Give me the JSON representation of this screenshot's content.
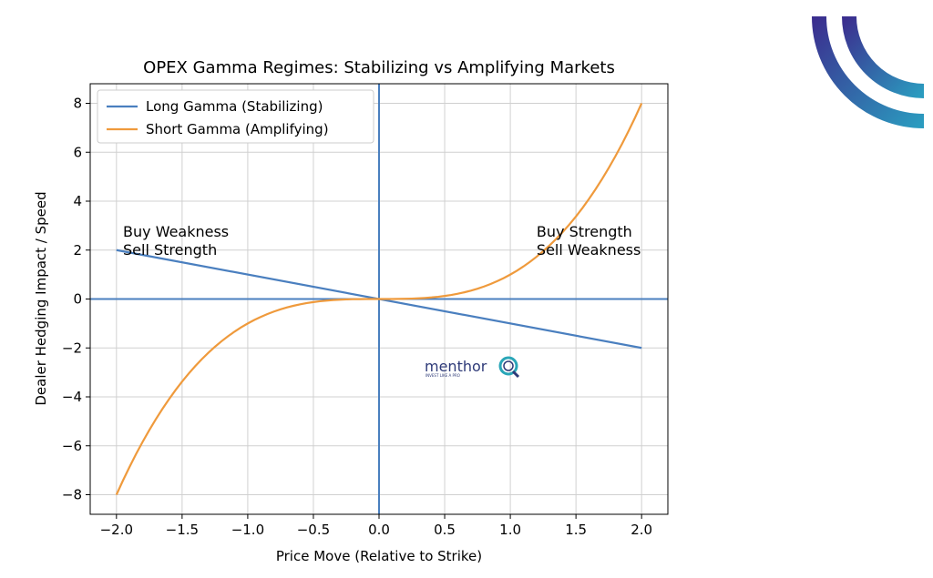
{
  "chart_data": {
    "type": "line",
    "title": "OPEX Gamma Regimes: Stabilizing vs Amplifying Markets",
    "xlabel": "Price Move (Relative to Strike)",
    "ylabel": "Dealer Hedging Impact / Speed",
    "xlim": [
      -2.2,
      2.2
    ],
    "ylim": [
      -8.8,
      8.8
    ],
    "xticks": [
      -2.0,
      -1.5,
      -1.0,
      -0.5,
      0.0,
      0.5,
      1.0,
      1.5,
      2.0
    ],
    "xtick_labels": [
      "−2.0",
      "−1.5",
      "−1.0",
      "−0.5",
      "0.0",
      "0.5",
      "1.0",
      "1.5",
      "2.0"
    ],
    "yticks": [
      -8,
      -6,
      -4,
      -2,
      0,
      2,
      4,
      6,
      8
    ],
    "ytick_labels": [
      "−8",
      "−6",
      "−4",
      "−2",
      "0",
      "2",
      "4",
      "6",
      "8"
    ],
    "grid": true,
    "legend_position": "upper-left",
    "series": [
      {
        "name": "Long Gamma (Stabilizing)",
        "color": "#4a7fbf",
        "x": [
          -2.0,
          2.0
        ],
        "y": [
          2.0,
          -2.0
        ]
      },
      {
        "name": "Short Gamma (Amplifying)",
        "color": "#ef9a3c",
        "x": [
          -2.0,
          -1.75,
          -1.5,
          -1.25,
          -1.0,
          -0.75,
          -0.5,
          -0.25,
          0.0,
          0.25,
          0.5,
          0.75,
          1.0,
          1.25,
          1.5,
          1.75,
          2.0
        ],
        "y": [
          -8.0,
          -5.36,
          -3.375,
          -1.953,
          -1.0,
          -0.422,
          -0.125,
          -0.016,
          0.0,
          0.016,
          0.125,
          0.422,
          1.0,
          1.953,
          3.375,
          5.36,
          8.0
        ]
      }
    ],
    "reference_lines": {
      "color": "#4a7fbf",
      "x": 0,
      "y": 0
    },
    "annotations": [
      {
        "lines": [
          "Buy Weakness",
          "Sell Strength"
        ],
        "x": -1.95,
        "y": 2.4
      },
      {
        "lines": [
          "Buy Strength",
          "Sell Weakness"
        ],
        "x": 1.2,
        "y": 2.4
      }
    ]
  },
  "watermark": {
    "brand": "menthor",
    "tagline": "INVEST LIKE A PRO",
    "icon": "q-logo-icon",
    "color": "#2e3a78",
    "accent": "#2aa6b8"
  },
  "logo": {
    "icon": "arc-logo-icon",
    "color_start": "#3b2f8f",
    "color_end": "#2b9bbf"
  }
}
